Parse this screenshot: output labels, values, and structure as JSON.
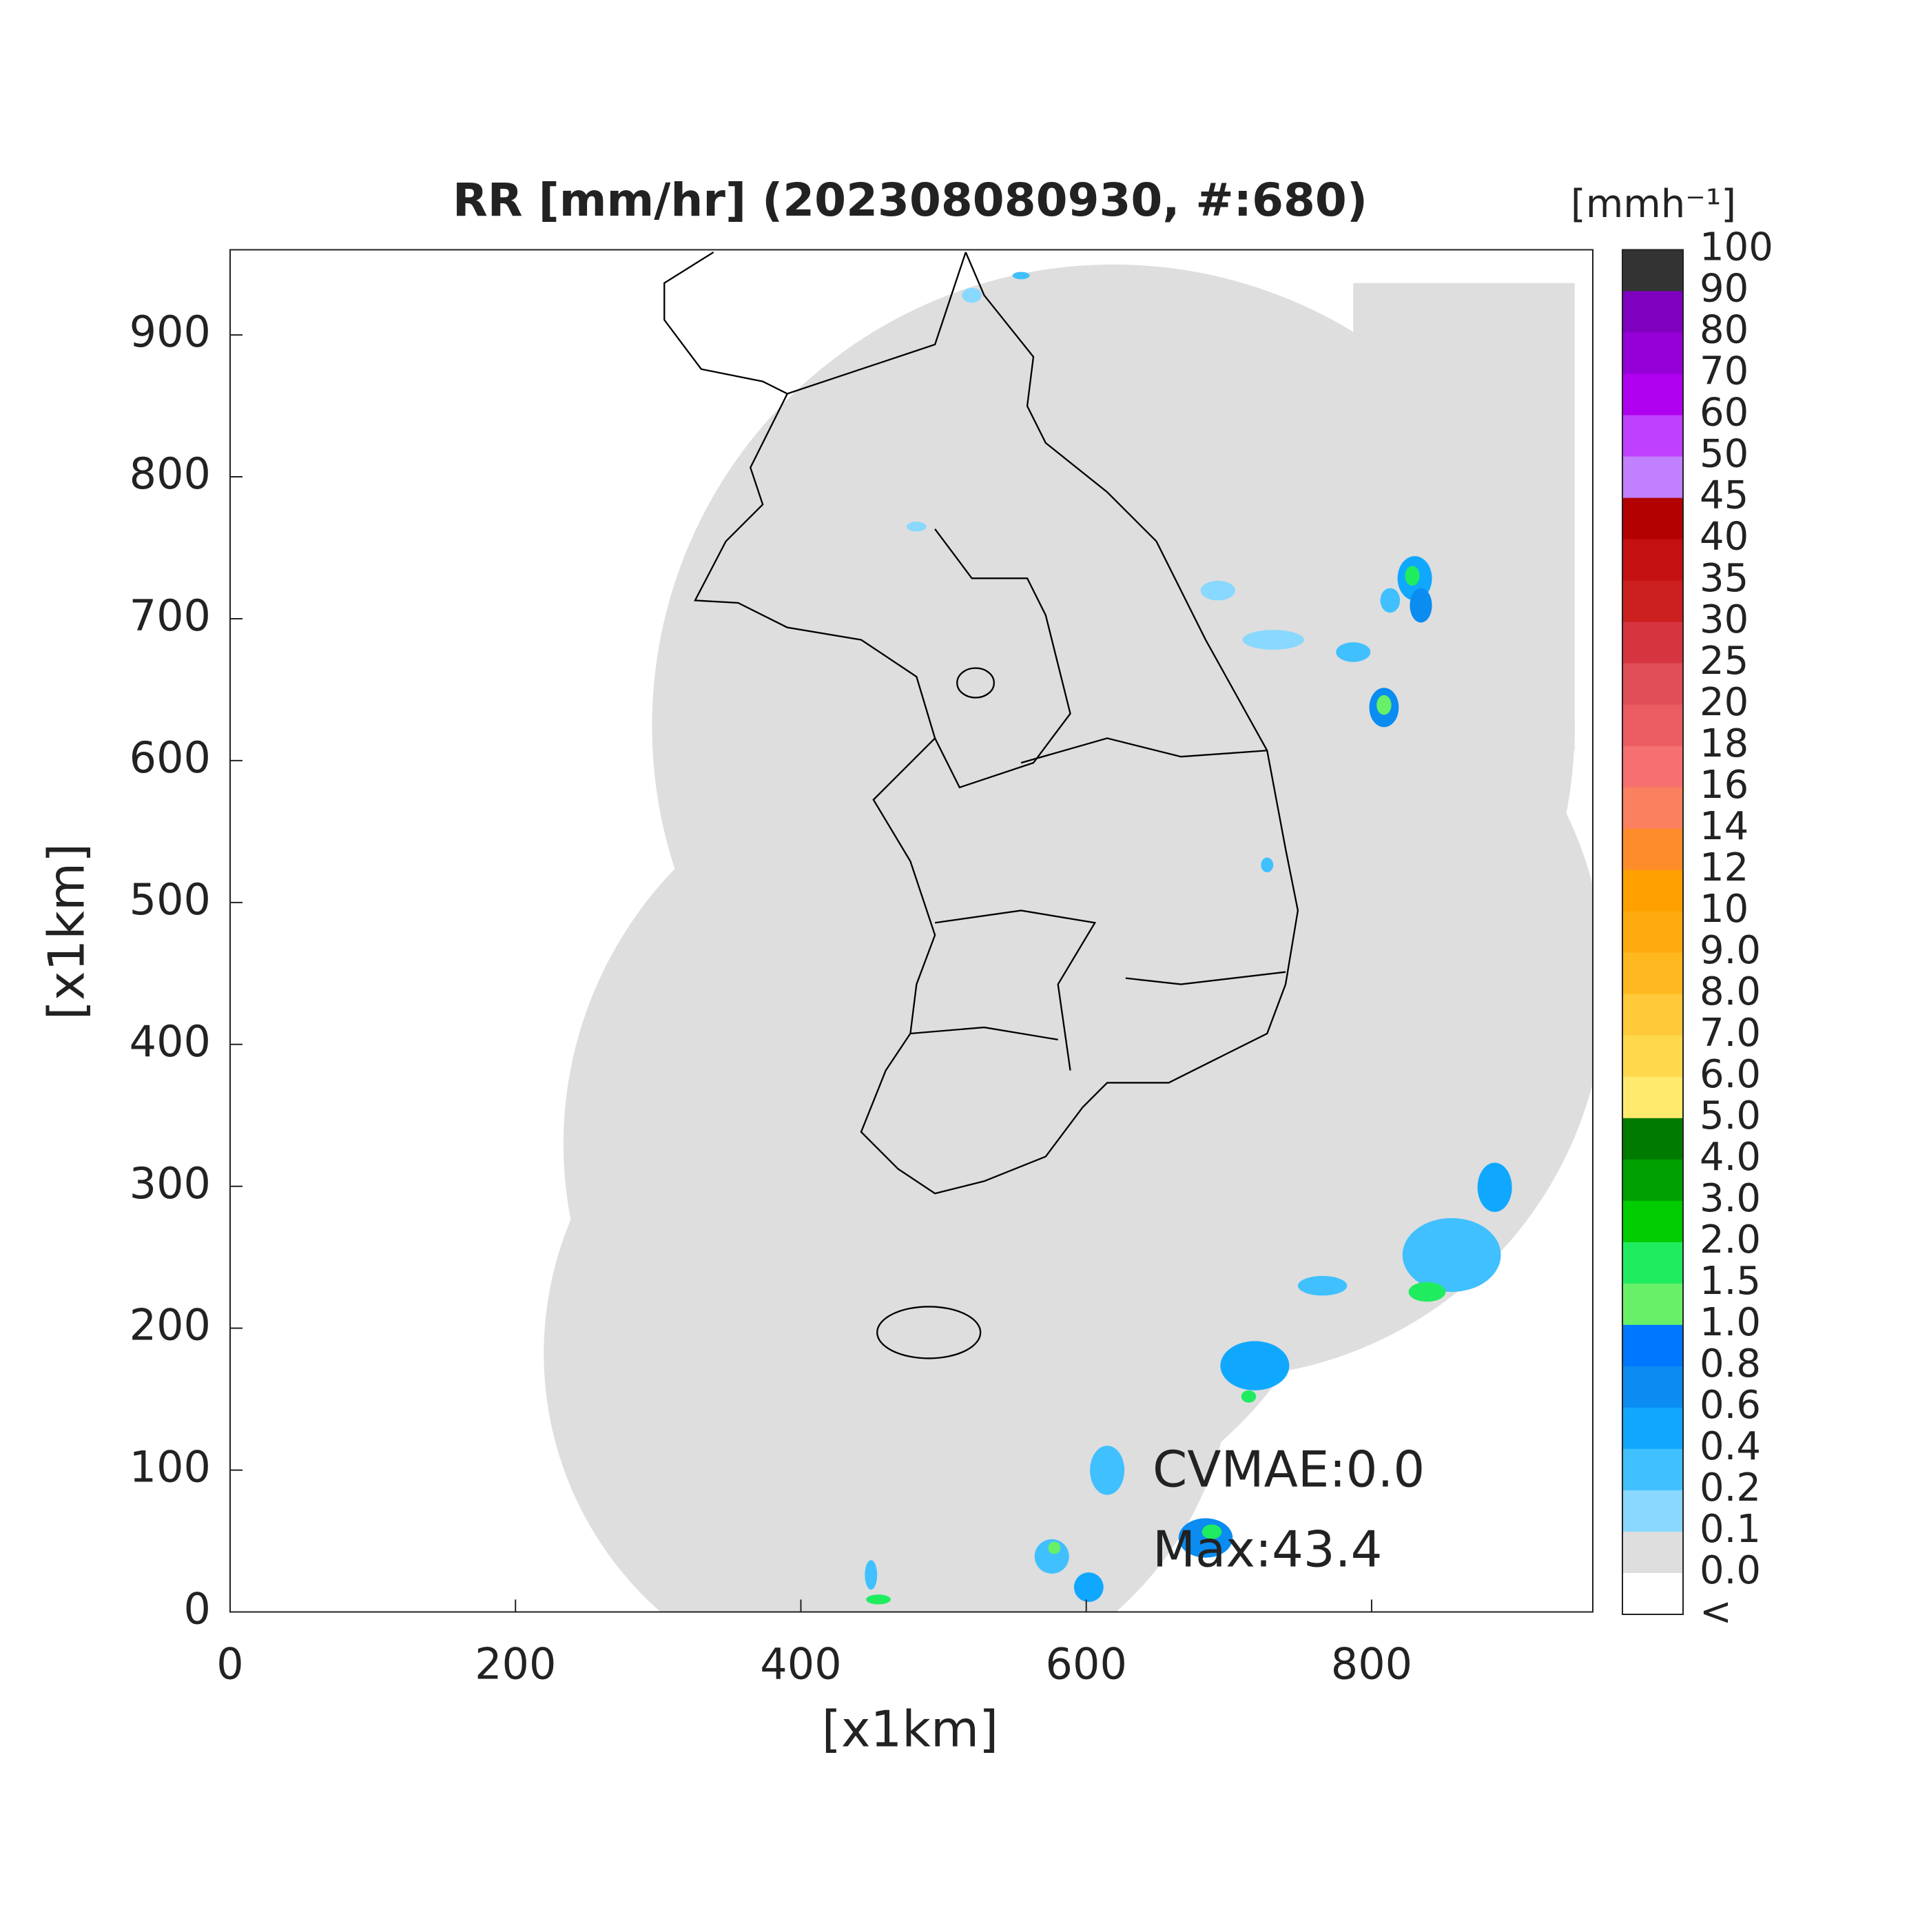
{
  "chart_data": {
    "type": "map",
    "title": "RR [mm/hr] (202308080930, #:680)",
    "xlabel": "[x1km]",
    "ylabel": "[x1km]",
    "xlim": [
      0,
      955
    ],
    "ylim": [
      0,
      960
    ],
    "xticks": [
      0,
      200,
      400,
      600,
      800
    ],
    "yticks": [
      0,
      100,
      200,
      300,
      400,
      500,
      600,
      700,
      800,
      900
    ],
    "colorbar": {
      "title": "[mmh⁻¹]",
      "labels": [
        "100",
        "90",
        "80",
        "70",
        "60",
        "50",
        "45",
        "40",
        "35",
        "30",
        "25",
        "20",
        "18",
        "16",
        "14",
        "12",
        "10",
        "9.0",
        "8.0",
        "7.0",
        "6.0",
        "5.0",
        "4.0",
        "3.0",
        "2.0",
        "1.5",
        "1.0",
        "0.8",
        "0.6",
        "0.4",
        "0.2",
        "0.1",
        "0.0",
        "<"
      ],
      "colors": [
        "#333333",
        "#7f00bf",
        "#9500d8",
        "#b000f0",
        "#c040ff",
        "#c080ff",
        "#b30000",
        "#c41010",
        "#cc2020",
        "#d63540",
        "#e04e58",
        "#ea5c62",
        "#f5706e",
        "#fa8060",
        "#ff8c2a",
        "#ffa000",
        "#ffab10",
        "#ffb820",
        "#ffc93a",
        "#ffd84c",
        "#ffea6e",
        "#007a00",
        "#00a000",
        "#00cc00",
        "#20ec60",
        "#68f068",
        "#0077ff",
        "#0a8cf0",
        "#10a8ff",
        "#40c0ff",
        "#88d8ff",
        "#dedede",
        "#ffffff"
      ]
    },
    "annotations": [
      "CVMAE:0.0",
      "Max:43.4"
    ]
  }
}
